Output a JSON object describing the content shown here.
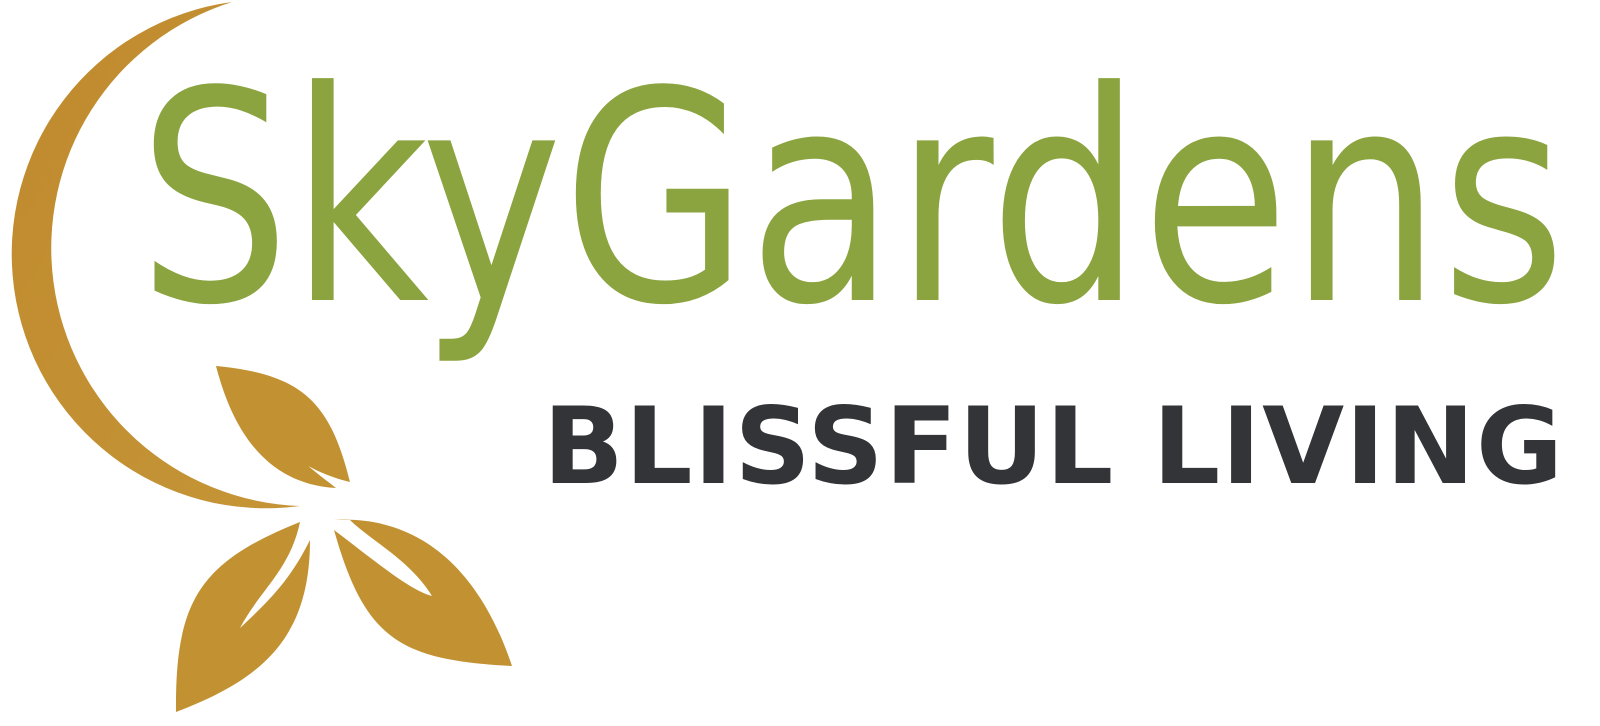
{
  "logo": {
    "name": "SkyGardens",
    "tagline": "BLISSFUL LIVING"
  }
}
